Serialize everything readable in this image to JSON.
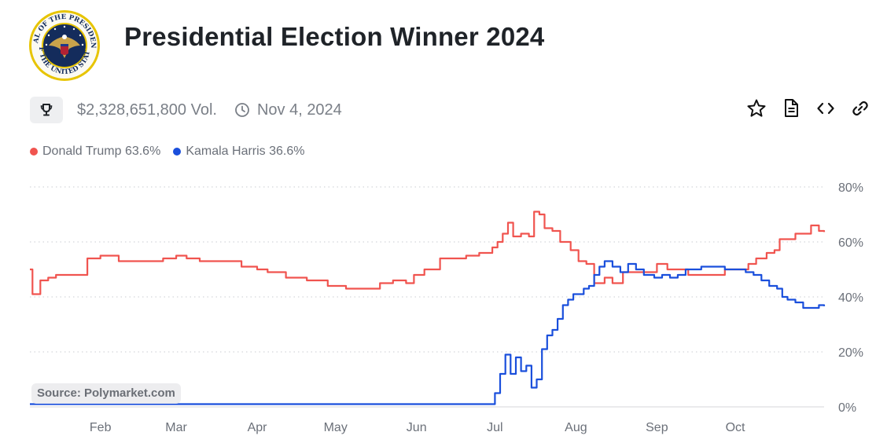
{
  "header": {
    "title": "Presidential Election Winner 2024",
    "volume": "$2,328,651,800 Vol.",
    "date": "Nov 4, 2024"
  },
  "seal": {
    "ring_text": "SEAL OF THE PRESIDENT OF THE UNITED STATES"
  },
  "icons": {
    "trophy": "trophy-icon",
    "clock": "clock-icon",
    "star": "star-icon",
    "document": "document-icon",
    "embed": "code-icon",
    "link": "link-icon"
  },
  "legend": [
    {
      "label": "Donald Trump 63.6%",
      "color": "#f0544f"
    },
    {
      "label": "Kamala Harris 36.6%",
      "color": "#1a4fdc"
    }
  ],
  "source": "Source: Polymarket.com",
  "chart_data": {
    "type": "line",
    "x_tick_labels": [
      "Feb",
      "Mar",
      "Apr",
      "May",
      "Jun",
      "Jul",
      "Aug",
      "Sep",
      "Oct"
    ],
    "y_tick_labels": [
      "80%",
      "60%",
      "40%",
      "20%",
      "0%"
    ],
    "ylim": [
      0,
      80
    ],
    "xlim": [
      "2024-01-05",
      "2024-11-04"
    ],
    "grid": "horizontal dotted",
    "legend_position": "top-left",
    "series": [
      {
        "name": "Donald Trump",
        "color": "#f0544f",
        "points": [
          [
            "2024-01-05",
            50
          ],
          [
            "2024-01-06",
            41
          ],
          [
            "2024-01-08",
            41
          ],
          [
            "2024-01-09",
            46
          ],
          [
            "2024-01-12",
            47
          ],
          [
            "2024-01-15",
            48
          ],
          [
            "2024-01-20",
            48
          ],
          [
            "2024-01-25",
            48
          ],
          [
            "2024-01-27",
            54
          ],
          [
            "2024-02-01",
            55
          ],
          [
            "2024-02-05",
            55
          ],
          [
            "2024-02-08",
            53
          ],
          [
            "2024-02-15",
            53
          ],
          [
            "2024-02-20",
            53
          ],
          [
            "2024-02-25",
            54
          ],
          [
            "2024-03-01",
            55
          ],
          [
            "2024-03-05",
            54
          ],
          [
            "2024-03-10",
            53
          ],
          [
            "2024-03-15",
            53
          ],
          [
            "2024-03-22",
            53
          ],
          [
            "2024-03-26",
            51
          ],
          [
            "2024-04-01",
            50
          ],
          [
            "2024-04-05",
            49
          ],
          [
            "2024-04-12",
            47
          ],
          [
            "2024-04-20",
            46
          ],
          [
            "2024-04-28",
            44
          ],
          [
            "2024-05-05",
            43
          ],
          [
            "2024-05-12",
            43
          ],
          [
            "2024-05-18",
            45
          ],
          [
            "2024-05-23",
            46
          ],
          [
            "2024-05-28",
            45
          ],
          [
            "2024-05-31",
            48
          ],
          [
            "2024-06-04",
            50
          ],
          [
            "2024-06-10",
            54
          ],
          [
            "2024-06-15",
            54
          ],
          [
            "2024-06-20",
            55
          ],
          [
            "2024-06-25",
            56
          ],
          [
            "2024-06-28",
            56
          ],
          [
            "2024-06-30",
            58
          ],
          [
            "2024-07-02",
            60
          ],
          [
            "2024-07-04",
            63
          ],
          [
            "2024-07-06",
            67
          ],
          [
            "2024-07-08",
            62
          ],
          [
            "2024-07-11",
            63
          ],
          [
            "2024-07-14",
            62
          ],
          [
            "2024-07-16",
            71
          ],
          [
            "2024-07-18",
            70
          ],
          [
            "2024-07-20",
            65
          ],
          [
            "2024-07-23",
            64
          ],
          [
            "2024-07-26",
            60
          ],
          [
            "2024-07-30",
            57
          ],
          [
            "2024-08-02",
            53
          ],
          [
            "2024-08-05",
            52
          ],
          [
            "2024-08-08",
            45
          ],
          [
            "2024-08-12",
            47
          ],
          [
            "2024-08-15",
            45
          ],
          [
            "2024-08-19",
            49
          ],
          [
            "2024-08-24",
            49
          ],
          [
            "2024-08-28",
            49
          ],
          [
            "2024-09-01",
            52
          ],
          [
            "2024-09-05",
            50
          ],
          [
            "2024-09-10",
            50
          ],
          [
            "2024-09-13",
            48
          ],
          [
            "2024-09-17",
            48
          ],
          [
            "2024-09-22",
            48
          ],
          [
            "2024-09-27",
            50
          ],
          [
            "2024-10-01",
            50
          ],
          [
            "2024-10-06",
            52
          ],
          [
            "2024-10-09",
            54
          ],
          [
            "2024-10-13",
            56
          ],
          [
            "2024-10-16",
            57
          ],
          [
            "2024-10-18",
            61
          ],
          [
            "2024-10-21",
            61
          ],
          [
            "2024-10-24",
            63
          ],
          [
            "2024-10-27",
            63
          ],
          [
            "2024-10-30",
            66
          ],
          [
            "2024-11-02",
            64
          ],
          [
            "2024-11-04",
            63.6
          ]
        ]
      },
      {
        "name": "Kamala Harris",
        "color": "#1a4fdc",
        "points": [
          [
            "2024-01-05",
            1
          ],
          [
            "2024-02-10",
            1
          ],
          [
            "2024-03-01",
            1
          ],
          [
            "2024-04-01",
            1
          ],
          [
            "2024-05-01",
            1
          ],
          [
            "2024-06-01",
            1
          ],
          [
            "2024-06-25",
            1
          ],
          [
            "2024-06-29",
            1
          ],
          [
            "2024-07-01",
            5
          ],
          [
            "2024-07-03",
            12
          ],
          [
            "2024-07-05",
            19
          ],
          [
            "2024-07-07",
            12
          ],
          [
            "2024-07-09",
            18
          ],
          [
            "2024-07-11",
            13
          ],
          [
            "2024-07-13",
            15
          ],
          [
            "2024-07-15",
            7
          ],
          [
            "2024-07-17",
            10
          ],
          [
            "2024-07-19",
            21
          ],
          [
            "2024-07-21",
            26
          ],
          [
            "2024-07-23",
            28
          ],
          [
            "2024-07-25",
            32
          ],
          [
            "2024-07-27",
            37
          ],
          [
            "2024-07-29",
            39
          ],
          [
            "2024-07-31",
            41
          ],
          [
            "2024-08-02",
            41
          ],
          [
            "2024-08-04",
            43
          ],
          [
            "2024-08-06",
            44
          ],
          [
            "2024-08-08",
            48
          ],
          [
            "2024-08-10",
            51
          ],
          [
            "2024-08-12",
            53
          ],
          [
            "2024-08-15",
            51
          ],
          [
            "2024-08-18",
            49
          ],
          [
            "2024-08-21",
            52
          ],
          [
            "2024-08-24",
            50
          ],
          [
            "2024-08-27",
            48
          ],
          [
            "2024-08-31",
            47
          ],
          [
            "2024-09-03",
            48
          ],
          [
            "2024-09-06",
            47
          ],
          [
            "2024-09-09",
            48
          ],
          [
            "2024-09-12",
            50
          ],
          [
            "2024-09-15",
            50
          ],
          [
            "2024-09-18",
            51
          ],
          [
            "2024-09-22",
            51
          ],
          [
            "2024-09-27",
            50
          ],
          [
            "2024-10-01",
            50
          ],
          [
            "2024-10-05",
            49
          ],
          [
            "2024-10-08",
            48
          ],
          [
            "2024-10-11",
            46
          ],
          [
            "2024-10-14",
            44
          ],
          [
            "2024-10-17",
            43
          ],
          [
            "2024-10-19",
            40
          ],
          [
            "2024-10-21",
            39
          ],
          [
            "2024-10-24",
            38
          ],
          [
            "2024-10-27",
            36
          ],
          [
            "2024-10-30",
            36
          ],
          [
            "2024-11-02",
            37
          ],
          [
            "2024-11-04",
            36.6
          ]
        ]
      }
    ]
  }
}
